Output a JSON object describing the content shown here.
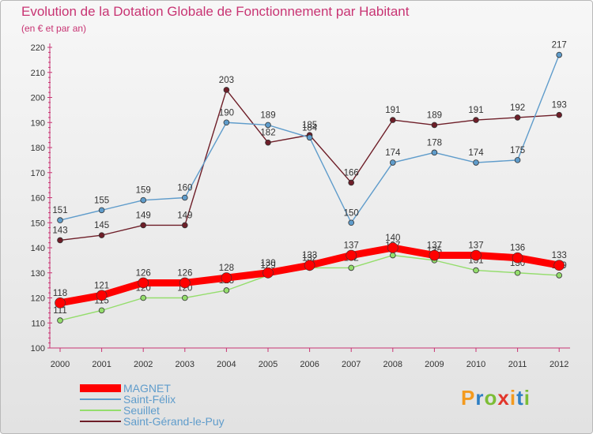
{
  "chart_data": {
    "type": "line",
    "title": "Evolution de la Dotation Globale de Fonctionnement par Habitant",
    "subtitle": "(en € et par an)",
    "categories": [
      "2000",
      "2001",
      "2002",
      "2003",
      "2004",
      "2005",
      "2006",
      "2007",
      "2008",
      "2009",
      "2010",
      "2011",
      "2012"
    ],
    "ylim": [
      100,
      220
    ],
    "yticks": [
      100,
      110,
      120,
      130,
      140,
      150,
      160,
      170,
      180,
      190,
      200,
      210,
      220
    ],
    "grid": false,
    "legend_position": "bottom-left",
    "series": [
      {
        "name": "Saint-Gérand-le-Puy",
        "color": "#6e1e28",
        "values": [
          143,
          145,
          149,
          149,
          203,
          182,
          185,
          166,
          191,
          189,
          191,
          192,
          193
        ]
      },
      {
        "name": "Saint-Félix",
        "color": "#5f9ccb",
        "values": [
          151,
          155,
          159,
          160,
          190,
          189,
          184,
          150,
          174,
          178,
          174,
          175,
          217
        ]
      },
      {
        "name": "Seuillet",
        "color": "#94dd6c",
        "values": [
          111,
          115,
          120,
          120,
          123,
          129,
          132,
          132,
          137,
          135,
          131,
          130,
          129
        ]
      },
      {
        "name": "MAGNET",
        "color": "#ff0000",
        "values": [
          118,
          121,
          126,
          126,
          128,
          130,
          133,
          137,
          140,
          137,
          137,
          136,
          133
        ]
      }
    ]
  },
  "legend": {
    "items": [
      {
        "label": "MAGNET",
        "color": "#ff0000"
      },
      {
        "label": "Saint-Félix",
        "color": "#5f9ccb"
      },
      {
        "label": "Seuillet",
        "color": "#94dd6c"
      },
      {
        "label": "Saint-Gérand-le-Puy",
        "color": "#6e1e28"
      }
    ]
  },
  "logo": {
    "text": "Proxiti",
    "letters": [
      "P",
      "r",
      "o",
      "x",
      "i",
      "t",
      "i"
    ]
  }
}
